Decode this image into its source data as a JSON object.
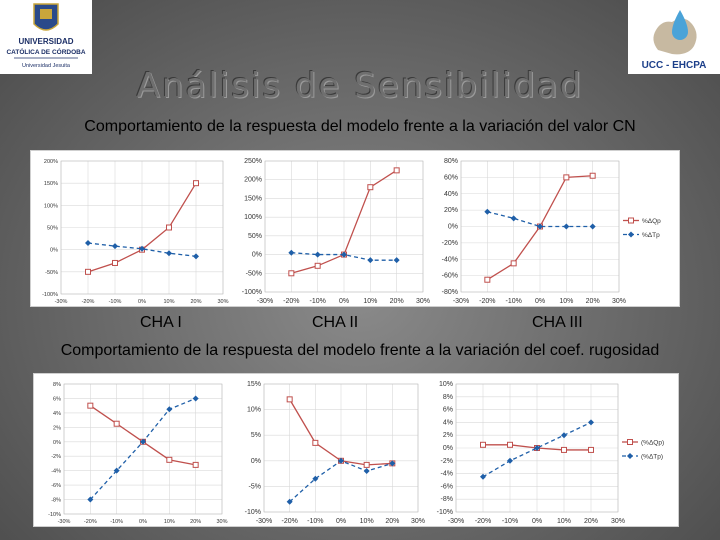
{
  "header": {
    "left_logo": {
      "name": "UNIVERSIDAD",
      "name2": "CATÓLICA DE CÓRDOBA",
      "motto": "Universidad Jesuita"
    },
    "right_logo": {
      "text": "UCC - EHCPA"
    },
    "title": "Análisis de Sensibilidad"
  },
  "captions": {
    "cn": "Comportamiento de la respuesta del modelo frente a la variación del valor CN",
    "rug": "Comportamiento de la respuesta del modelo frente a la variación del coef. rugosidad"
  },
  "labels": {
    "cha1": "CHA I",
    "cha2": "CHA II",
    "cha3": "CHA III"
  },
  "colors": {
    "series_qp": "#c0504d",
    "series_tp": "#1f5fa8"
  },
  "chart_data": [
    {
      "type": "line",
      "x": [
        -20,
        -10,
        0,
        10,
        20
      ],
      "xticks": [
        "-30%",
        "-20%",
        "-10%",
        "0%",
        "10%",
        "20%",
        "30%"
      ],
      "yticks": [
        "200%",
        "150%",
        "100%",
        "50%",
        "0%",
        "-50%",
        "-100%"
      ],
      "ylim": [
        -100,
        200
      ],
      "series": [
        {
          "name": "%ΔQp",
          "values": [
            -50,
            -30,
            0,
            50,
            150
          ]
        },
        {
          "name": "%ΔTp",
          "values": [
            15,
            8,
            2,
            -8,
            -15
          ]
        }
      ]
    },
    {
      "type": "line",
      "x": [
        -20,
        -10,
        0,
        10,
        20
      ],
      "xticks": [
        "-30%",
        "-20%",
        "-10%",
        "0%",
        "10%",
        "20%",
        "30%"
      ],
      "yticks": [
        "250%",
        "200%",
        "150%",
        "100%",
        "50%",
        "0%",
        "-50%",
        "-100%"
      ],
      "ylim": [
        -100,
        250
      ],
      "series": [
        {
          "name": "%ΔQp",
          "values": [
            -50,
            -30,
            0,
            180,
            225
          ]
        },
        {
          "name": "%ΔTp",
          "values": [
            5,
            0,
            0,
            -15,
            -15
          ]
        }
      ]
    },
    {
      "type": "line",
      "x": [
        -20,
        -10,
        0,
        10,
        20
      ],
      "xticks": [
        "-30%",
        "-20%",
        "-10%",
        "0%",
        "10%",
        "20%",
        "30%"
      ],
      "yticks": [
        "80%",
        "60%",
        "40%",
        "20%",
        "0%",
        "-20%",
        "-40%",
        "-60%",
        "-80%"
      ],
      "ylim": [
        -80,
        80
      ],
      "series": [
        {
          "name": "%ΔQp",
          "values": [
            -65,
            -45,
            0,
            60,
            62
          ]
        },
        {
          "name": "%ΔTp",
          "values": [
            18,
            10,
            0,
            0,
            0
          ]
        }
      ],
      "legend": "right"
    },
    {
      "type": "line",
      "x": [
        -20,
        -10,
        0,
        10,
        20
      ],
      "xticks": [
        "-30%",
        "-20%",
        "-10%",
        "0%",
        "10%",
        "20%",
        "30%"
      ],
      "yticks": [
        "8%",
        "6%",
        "4%",
        "2%",
        "0%",
        "-2%",
        "-4%",
        "-6%",
        "-8%",
        "-10%"
      ],
      "ylim": [
        -10,
        8
      ],
      "series": [
        {
          "name": "%ΔQp",
          "values": [
            5,
            2.5,
            0,
            -2.5,
            -3.2
          ]
        },
        {
          "name": "%ΔTp",
          "values": [
            -8,
            -4,
            0,
            4.5,
            6
          ]
        }
      ]
    },
    {
      "type": "line",
      "x": [
        -20,
        -10,
        0,
        10,
        20
      ],
      "xticks": [
        "-30%",
        "-20%",
        "-10%",
        "0%",
        "10%",
        "20%",
        "30%"
      ],
      "yticks": [
        "15%",
        "10%",
        "5%",
        "0%",
        "-5%",
        "-10%"
      ],
      "ylim": [
        -10,
        15
      ],
      "series": [
        {
          "name": "%ΔQp",
          "values": [
            12,
            3.5,
            0,
            -0.8,
            -0.5
          ]
        },
        {
          "name": "%ΔTp",
          "values": [
            -8,
            -3.5,
            0,
            -2,
            -0.5
          ]
        }
      ]
    },
    {
      "type": "line",
      "x": [
        -20,
        -10,
        0,
        10,
        20
      ],
      "xticks": [
        "-30%",
        "-20%",
        "-10%",
        "0%",
        "10%",
        "20%",
        "30%"
      ],
      "yticks": [
        "10%",
        "8%",
        "6%",
        "4%",
        "2%",
        "0%",
        "-2%",
        "-4%",
        "-6%",
        "-8%",
        "-10%"
      ],
      "ylim": [
        -10,
        10
      ],
      "series": [
        {
          "name": "(%ΔQp)",
          "values": [
            0.5,
            0.5,
            0,
            -0.3,
            -0.3
          ]
        },
        {
          "name": "(%ΔTp)",
          "values": [
            -4.5,
            -2,
            0,
            2,
            4
          ]
        }
      ],
      "legend": "right"
    }
  ]
}
